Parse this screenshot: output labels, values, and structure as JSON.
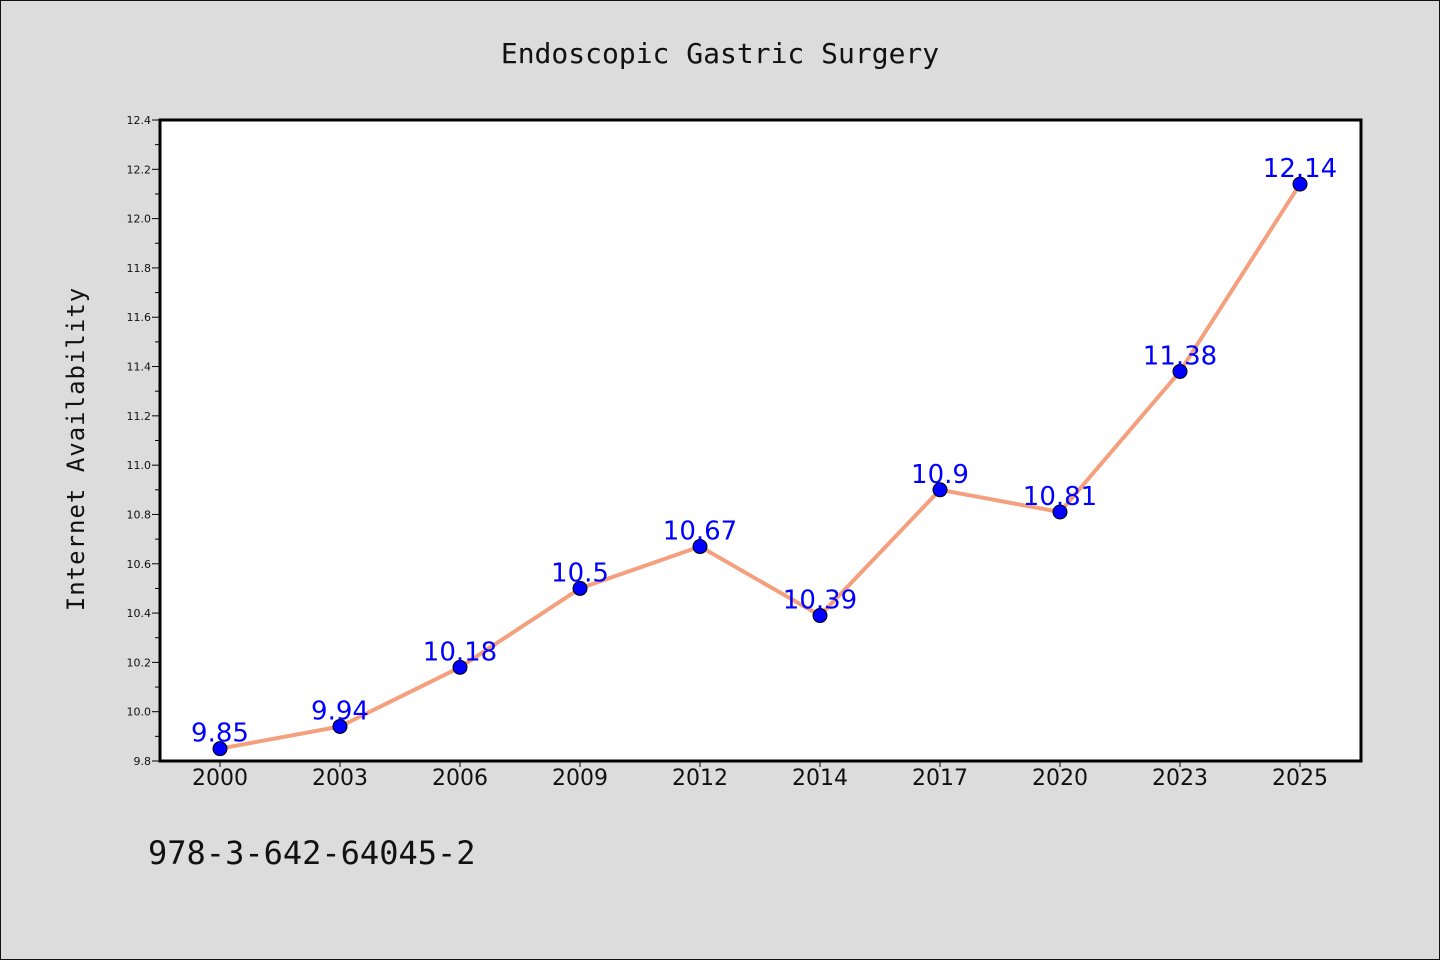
{
  "chart_data": {
    "type": "line",
    "title": "Endoscopic Gastric Surgery",
    "xlabel": "",
    "ylabel": "Internet Availability",
    "categories": [
      "2000",
      "2003",
      "2006",
      "2009",
      "2012",
      "2014",
      "2017",
      "2020",
      "2023",
      "2025"
    ],
    "series": [
      {
        "values": [
          9.85,
          9.94,
          10.18,
          10.5,
          10.67,
          10.39,
          10.9,
          10.81,
          11.38,
          12.14
        ],
        "data_labels": [
          "9.85",
          "9.94",
          "10.18",
          "10.5",
          "10.67",
          "10.39",
          "10.9",
          "10.81",
          "11.38",
          "12.14"
        ],
        "line_color": "#f4a07e",
        "marker_color": "#0000ff"
      }
    ],
    "ylim": [
      9.8,
      12.4
    ],
    "yticks": [
      "9.8",
      "10.0",
      "10.2",
      "10.4",
      "10.6",
      "10.8",
      "11.0",
      "11.2",
      "11.4",
      "11.6",
      "11.8",
      "12.0",
      "12.2",
      "12.4"
    ],
    "grid": false,
    "legend": "none"
  },
  "footer": {
    "isbn": "978-3-642-64045-2"
  }
}
